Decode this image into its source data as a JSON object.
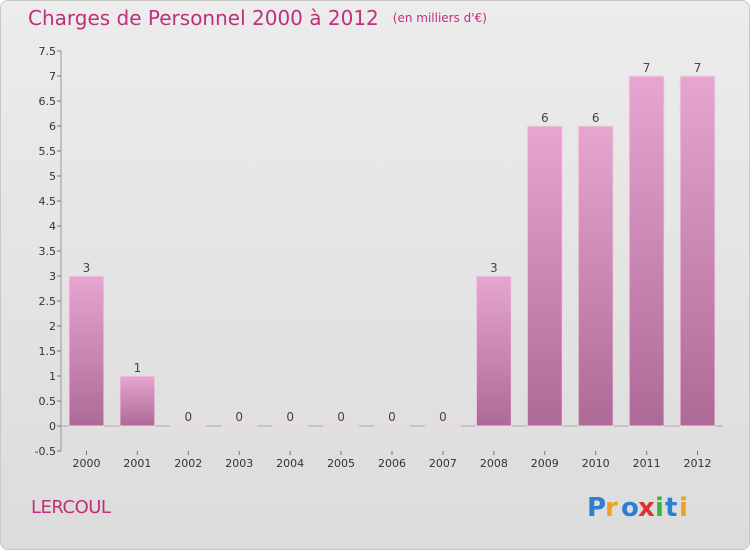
{
  "header": {
    "title": "Charges de Personnel 2000 à 2012",
    "unit": "(en milliers d'€)"
  },
  "footer": {
    "commune": "LERCOUL",
    "logo_text": "Proxiti"
  },
  "colors": {
    "bar_top": "#e6a6cf",
    "bar_bottom": "#ad6a96",
    "bar_outline": "#f3d3e6",
    "title": "#c0307a"
  },
  "chart_data": {
    "type": "bar",
    "categories": [
      "2000",
      "2001",
      "2002",
      "2003",
      "2004",
      "2005",
      "2006",
      "2007",
      "2008",
      "2009",
      "2010",
      "2011",
      "2012"
    ],
    "values": [
      3,
      1,
      0,
      0,
      0,
      0,
      0,
      0,
      3,
      6,
      6,
      7,
      7
    ],
    "data_labels": [
      "3",
      "1",
      "0",
      "0",
      "0",
      "0",
      "0",
      "0",
      "3",
      "6",
      "6",
      "7",
      "7"
    ],
    "ylim": [
      -0.5,
      7.5
    ],
    "yticks": [
      -0.5,
      0,
      0.5,
      1,
      1.5,
      2,
      2.5,
      3,
      3.5,
      4,
      4.5,
      5,
      5.5,
      6,
      6.5,
      7,
      7.5
    ],
    "ytick_labels": [
      "-0.5",
      "0",
      "0.5",
      "1",
      "1.5",
      "2",
      "2.5",
      "3",
      "3.5",
      "4",
      "4.5",
      "5",
      "5.5",
      "6",
      "6.5",
      "7",
      "7.5"
    ],
    "grid": false,
    "legend": false
  }
}
